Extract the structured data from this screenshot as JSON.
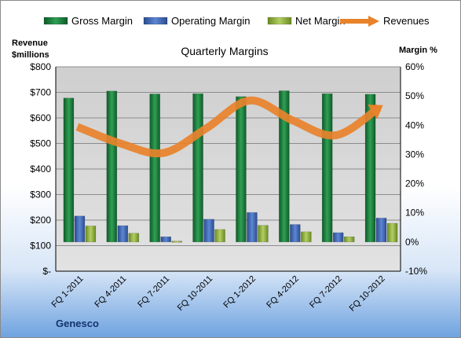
{
  "company": "Genesco",
  "chart_data": {
    "type": "bar",
    "title": "Quarterly Margins",
    "ylabel_left": "Revenue\n$millions",
    "ylabel_right": "Margin %",
    "categories": [
      "FQ 1-2011",
      "FQ 4-2011",
      "FQ 7-2011",
      "FQ 10-2011",
      "FQ 1-2012",
      "FQ 4-2012",
      "FQ 7-2012",
      "FQ 10-2012"
    ],
    "left_axis": {
      "min": 0,
      "max": 800,
      "step": 100,
      "tick_labels": [
        "$-",
        "$100",
        "$200",
        "$300",
        "$400",
        "$500",
        "$600",
        "$700",
        "$800"
      ]
    },
    "right_axis": {
      "min": -10,
      "max": 60,
      "step": 10,
      "tick_labels": [
        "-10%",
        "0%",
        "10%",
        "20%",
        "30%",
        "40%",
        "50%",
        "60%"
      ]
    },
    "series": [
      {
        "name": "Gross Margin",
        "axis": "right",
        "kind": "bar",
        "color": "#1f7a3c",
        "values": [
          49.3,
          51.7,
          50.7,
          50.8,
          49.8,
          51.8,
          50.8,
          50.6
        ]
      },
      {
        "name": "Operating Margin",
        "axis": "right",
        "kind": "bar",
        "color": "#3f66b5",
        "values": [
          8.9,
          5.6,
          1.8,
          7.8,
          10.1,
          6.0,
          3.2,
          8.2
        ]
      },
      {
        "name": "Net Margin",
        "axis": "right",
        "kind": "bar",
        "color": "#8fb040",
        "values": [
          5.5,
          3.0,
          0.3,
          4.3,
          5.7,
          3.5,
          1.8,
          6.4
        ]
      },
      {
        "name": "Revenues",
        "axis": "left",
        "kind": "line",
        "color": "#e8822b",
        "values": [
          565,
          500,
          463,
          560,
          668,
          590,
          532,
          640
        ]
      }
    ],
    "grid": true,
    "legend": "top"
  }
}
